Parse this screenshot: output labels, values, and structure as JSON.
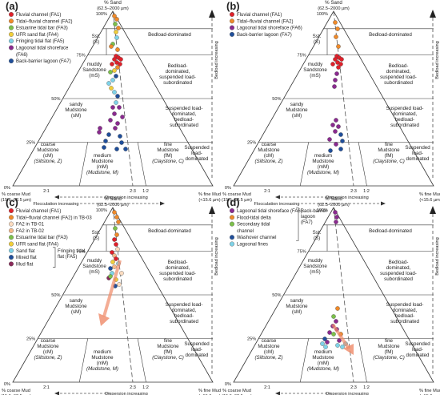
{
  "common": {
    "sand_top": "% Sand",
    "sand_range": "(62.5–2000 µm)",
    "pct100": "100%",
    "pct75": "75%",
    "pct50": "50%",
    "pct25": "25%",
    "pct0": "0%",
    "coarse_mud": "% coarse Mud",
    "coarse_mud_range": "(15.6–62.5 µm)",
    "fine_mud": "% fine Mud",
    "fine_mud_range": "(<15.6 µm)",
    "ratio_21": "2:1",
    "ratio_23": "2:3",
    "ratio_12": "1:2",
    "flocculation": "Flocculation increasing",
    "dispersion": "Dispersion increasing",
    "bedload_increasing": "Bedload increasing",
    "st": "Sst.",
    "st_s": "(S)",
    "muddy_sandstone": [
      "muddy",
      "Sandstone",
      "(mS)"
    ],
    "sandy_mudstone": [
      "sandy",
      "Mudstone",
      "(sM)"
    ],
    "coarse_mudstone": [
      "coarse",
      "Mudstone",
      "(cM)",
      "(Siltstone, Z)"
    ],
    "medium_mudstone": [
      "medium",
      "Mudstone",
      "(mM)",
      "(Mudstone, M)"
    ],
    "fine_mudstone": [
      "fine",
      "Mudstone",
      "(fM)",
      "(Claystone, C)"
    ],
    "bedload_dominated": "Bedload-dominated",
    "bedload_suspended": [
      "Bedload-",
      "dominated,",
      "suspended load-",
      "subordinated"
    ],
    "suspended_bedload": [
      "Suspended load-",
      "dominated,",
      "bedload-",
      "subordinated"
    ],
    "suspended_dominated": [
      "Suspended",
      "load-",
      "dominated"
    ]
  },
  "panels": [
    {
      "label": "(a)",
      "legend": [
        {
          "text": "Fluvial channel (FA1)",
          "color": "#e0202a"
        },
        {
          "text": "Tidal–fluvial channel (FA2)",
          "color": "#ef8a2a"
        },
        {
          "text": "Estuarine tidal bar (FA3)",
          "color": "#7cc04a"
        },
        {
          "text": "UFR sand flat (FA4)",
          "color": "#f2cf3a"
        },
        {
          "text": "Fringing tidal flat (FA5)",
          "color": "#7fd3e8"
        },
        {
          "text": "Lagoonal tidal shoreface",
          "color": "#8a2a8f"
        },
        {
          "text": "(FA6)",
          "color": ""
        },
        {
          "text": "Back-barrier lagoon (FA7)",
          "color": "#1f4e9a"
        }
      ]
    },
    {
      "label": "(b)",
      "legend": [
        {
          "text": "Fluvial channel (FA1)",
          "color": "#e0202a"
        },
        {
          "text": "Tidal–fluvial channel (FA2)",
          "color": "#ef8a2a"
        },
        {
          "text": "Lagoonal tidal shoreface (FA6)",
          "color": "#8a2a8f"
        },
        {
          "text": "Back-barrier lagoon (FA7)",
          "color": "#1f4e9a"
        }
      ]
    },
    {
      "label": "(c)",
      "legend": [
        {
          "text": "Fluvial channel (FA1)",
          "color": "#e0202a"
        },
        {
          "text": "Tidal–fluvial channel (FA2) in TB-03",
          "color": "#ef8a2a"
        },
        {
          "text": "FA2 in TB-01",
          "color": "#fcdcc0"
        },
        {
          "text": "FA2 in TB-02",
          "color": "#f6b98a"
        },
        {
          "text": "Estuarine tidal bar (FA3)",
          "color": "#7cc04a"
        },
        {
          "text": "UFR sand flat (FA4)",
          "color": "#f2cf3a"
        },
        {
          "text": "Sand flat",
          "color": "#7fd3e8"
        },
        {
          "text": "Mixed flat",
          "color": "#1f4e9a"
        },
        {
          "text": "Mud flat",
          "color": "#8a2a5a"
        }
      ],
      "bracket": [
        "Fringing tidal",
        "flat (FA5)"
      ]
    },
    {
      "label": "(d)",
      "legend": [
        {
          "text": "Lagoonal tidal shoreface (FA6)",
          "color": "#8a2a8f"
        },
        {
          "text": "Flood-tidal delta",
          "color": "#ef8a2a"
        },
        {
          "text": "Secondary tidal",
          "color": "#7cc04a"
        },
        {
          "text": "channel",
          "color": ""
        },
        {
          "text": "Washover channel",
          "color": "#1f4e9a"
        },
        {
          "text": "Lagoonal fines",
          "color": "#7fd3e8"
        }
      ],
      "bracket": [
        "Back-barrier",
        "lagoon",
        "(FA7)"
      ]
    }
  ]
}
